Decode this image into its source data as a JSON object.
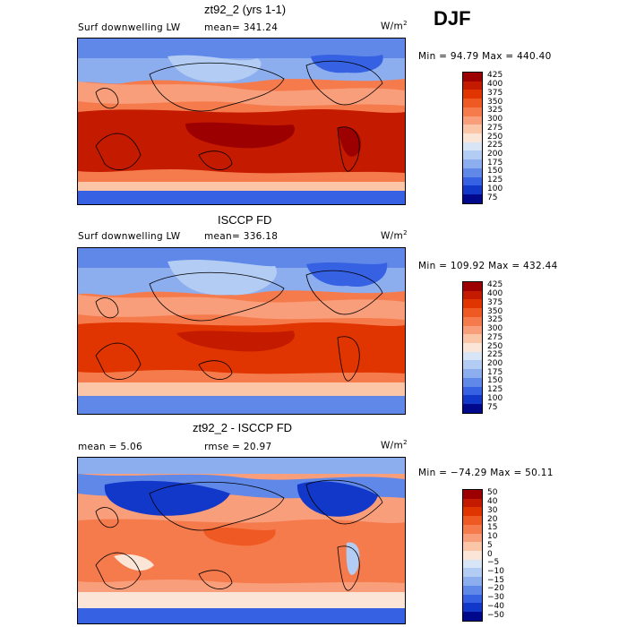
{
  "season": "DJF",
  "panels": [
    {
      "title": "zt92_2 (yrs 1-1)",
      "left_label": "Surf downwelling LW",
      "mean_label": "mean= 341.24",
      "units": "W/m",
      "units_exp": "2",
      "minmax": "Min =   94.79 Max = 440.40",
      "levels": [
        "425",
        "400",
        "375",
        "350",
        "325",
        "300",
        "275",
        "250",
        "225",
        "200",
        "175",
        "150",
        "125",
        "100",
        "75"
      ],
      "colors": [
        "#9c0000",
        "#c41a00",
        "#e03500",
        "#ef5a24",
        "#f67b4c",
        "#f99e7b",
        "#fbc5a8",
        "#fbe5d6",
        "#d7e5f7",
        "#b2ccf3",
        "#8caeee",
        "#5f88e8",
        "#3561e2",
        "#1138c8",
        "#00098c"
      ]
    },
    {
      "title": "ISCCP FD",
      "left_label": "Surf downwelling LW",
      "mean_label": "mean= 336.18",
      "units": "W/m",
      "units_exp": "2",
      "minmax": "Min = 109.92 Max = 432.44",
      "levels": [
        "425",
        "400",
        "375",
        "350",
        "325",
        "300",
        "275",
        "250",
        "225",
        "200",
        "175",
        "150",
        "125",
        "100",
        "75"
      ],
      "colors": [
        "#9c0000",
        "#c41a00",
        "#e03500",
        "#ef5a24",
        "#f67b4c",
        "#f99e7b",
        "#fbc5a8",
        "#fbe5d6",
        "#d7e5f7",
        "#b2ccf3",
        "#8caeee",
        "#5f88e8",
        "#3561e2",
        "#1138c8",
        "#00098c"
      ]
    },
    {
      "title": "zt92_2 - ISCCP FD",
      "left_label": "mean =    5.06",
      "mean_label": "rmse =  20.97",
      "units": "W/m",
      "units_exp": "2",
      "minmax": "Min = −74.29 Max =   50.11",
      "levels": [
        "50",
        "40",
        "30",
        "20",
        "15",
        "10",
        "5",
        "0",
        "−5",
        "−10",
        "−15",
        "−20",
        "−30",
        "−40",
        "−50"
      ],
      "colors": [
        "#9c0000",
        "#c41a00",
        "#e03500",
        "#ef5a24",
        "#f67b4c",
        "#f99e7b",
        "#fbc5a8",
        "#fbe5d6",
        "#d7e5f7",
        "#b2ccf3",
        "#8caeee",
        "#5f88e8",
        "#3561e2",
        "#1138c8",
        "#00098c"
      ]
    }
  ]
}
